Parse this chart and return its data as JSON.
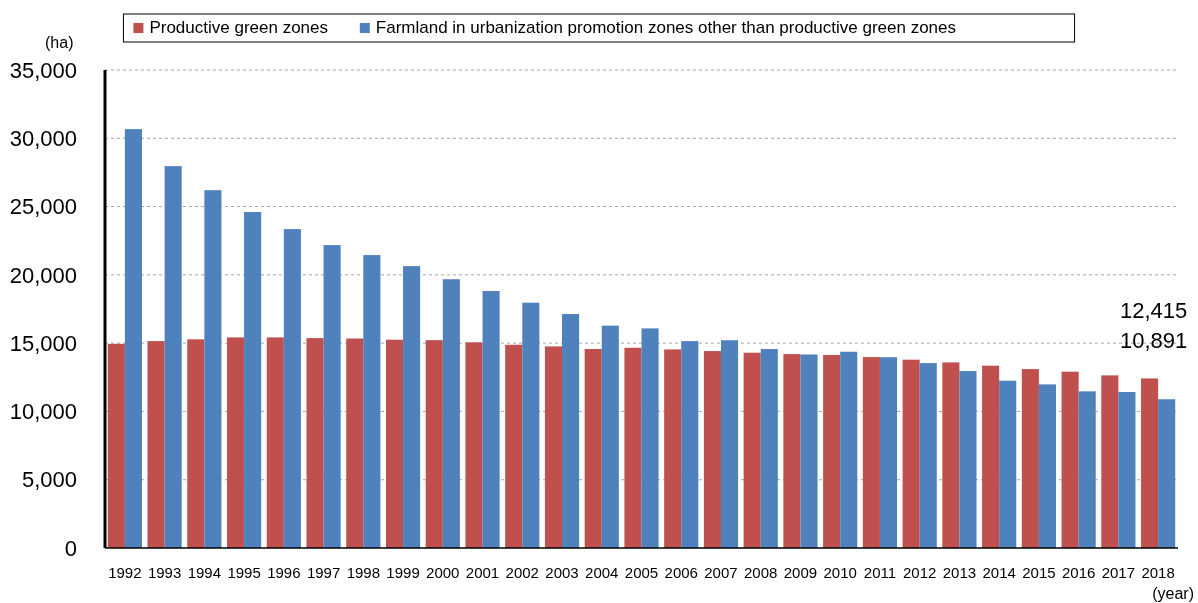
{
  "chart_data": {
    "type": "bar",
    "xlabel": "(year)",
    "ylabel": "(ha)",
    "categories": [
      "1992",
      "1993",
      "1994",
      "1995",
      "1996",
      "1997",
      "1998",
      "1999",
      "2000",
      "2001",
      "2002",
      "2003",
      "2004",
      "2005",
      "2006",
      "2007",
      "2008",
      "2009",
      "2010",
      "2011",
      "2012",
      "2013",
      "2014",
      "2015",
      "2016",
      "2017",
      "2018"
    ],
    "series": [
      {
        "name": "Productive green zones",
        "color": "#c0504d",
        "values": [
          14950,
          15150,
          15280,
          15420,
          15420,
          15370,
          15340,
          15250,
          15220,
          15060,
          14880,
          14760,
          14570,
          14660,
          14540,
          14420,
          14300,
          14200,
          14130,
          13980,
          13790,
          13590,
          13350,
          13100,
          12910,
          12640,
          12415
        ],
        "value_labels": [
          null,
          null,
          null,
          null,
          null,
          null,
          null,
          null,
          null,
          null,
          null,
          null,
          null,
          null,
          null,
          null,
          null,
          null,
          null,
          null,
          null,
          null,
          null,
          null,
          null,
          null,
          "12,415"
        ]
      },
      {
        "name": "Farmland in urbanization promotion zones other than productive green zones",
        "color": "#4f81bd",
        "values": [
          30670,
          27960,
          26200,
          24600,
          23350,
          22180,
          21450,
          20640,
          19680,
          18820,
          17960,
          17130,
          16280,
          16080,
          15150,
          15210,
          14570,
          14170,
          14370,
          13970,
          13540,
          12960,
          12250,
          11980,
          11470,
          11420,
          10891
        ],
        "value_labels": [
          null,
          null,
          null,
          null,
          null,
          null,
          null,
          null,
          null,
          null,
          null,
          null,
          null,
          null,
          null,
          null,
          null,
          null,
          null,
          null,
          null,
          null,
          null,
          null,
          null,
          null,
          "10,891"
        ]
      }
    ],
    "ylim": [
      0,
      35000
    ],
    "yticks": [
      {
        "value": 0,
        "label": "0"
      },
      {
        "value": 5000,
        "label": "5,000"
      },
      {
        "value": 10000,
        "label": "10,000"
      },
      {
        "value": 15000,
        "label": "15,000"
      },
      {
        "value": 20000,
        "label": "20,000"
      },
      {
        "value": 25000,
        "label": "25,000"
      },
      {
        "value": 30000,
        "label": "30,000"
      },
      {
        "value": 35000,
        "label": "35,000"
      }
    ],
    "grid": "y",
    "legend": "top"
  }
}
